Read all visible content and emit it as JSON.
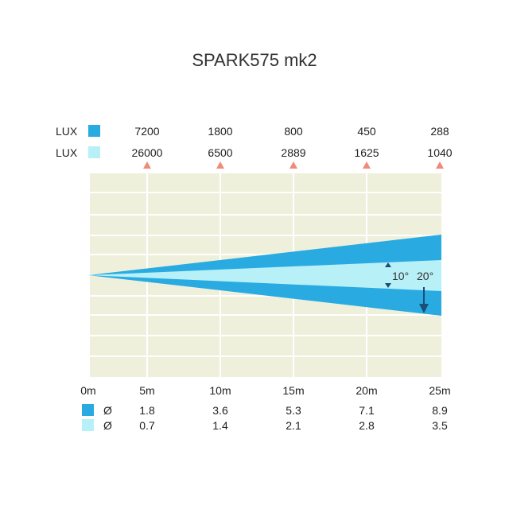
{
  "title": "SPARK575 mk2",
  "lux_rows": [
    {
      "label": "LUX",
      "color": "#29abe2",
      "values": [
        "7200",
        "1800",
        "800",
        "450",
        "288"
      ]
    },
    {
      "label": "LUX",
      "color": "#b8f0f8",
      "values": [
        "26000",
        "6500",
        "2889",
        "1625",
        "1040"
      ]
    }
  ],
  "distances": [
    "0m",
    "5m",
    "10m",
    "15m",
    "20m",
    "25m"
  ],
  "diameter_rows": [
    {
      "symbol": "Ø",
      "color": "#29abe2",
      "values": [
        "1.8",
        "3.6",
        "5.3",
        "7.1",
        "8.9"
      ]
    },
    {
      "symbol": "Ø",
      "color": "#b8f0f8",
      "values": [
        "0.7",
        "1.4",
        "2.1",
        "2.8",
        "3.5"
      ]
    }
  ],
  "beam_angles": {
    "narrow": "10°",
    "wide": "20°"
  },
  "colors": {
    "wide_beam": "#29abe2",
    "narrow_beam": "#b8f0f8",
    "plot_bg": "#eef0dc",
    "marker": "#f08a7a",
    "arrow": "#1a4f78"
  }
}
